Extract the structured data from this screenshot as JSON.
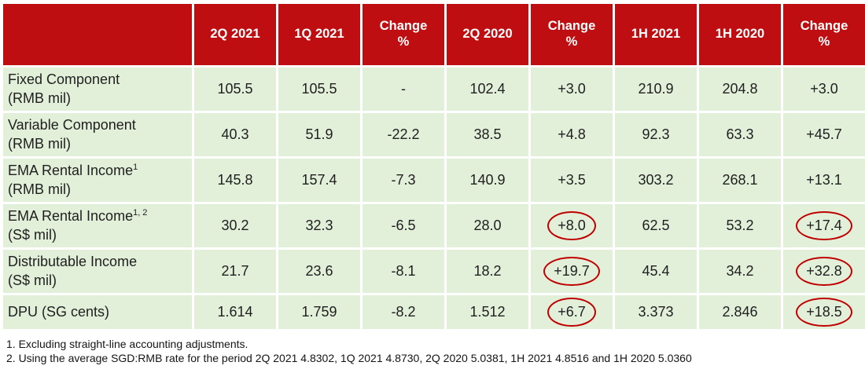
{
  "colors": {
    "header_bg": "#BE0E11",
    "row_bg": "#E2EFD9",
    "circle": "#C00000",
    "header_text": "#FFFFFF",
    "body_text": "#1F1F1F"
  },
  "table": {
    "headers": [
      "2Q 2021",
      "1Q 2021",
      "Change\n%",
      "2Q 2020",
      "Change\n%",
      "1H 2021",
      "1H 2020",
      "Change\n%"
    ],
    "rows": [
      {
        "name": "Fixed Component",
        "sup": "",
        "unit": "(RMB mil)",
        "values": [
          "105.5",
          "105.5",
          "-",
          "102.4",
          "+3.0",
          "210.9",
          "204.8",
          "+3.0"
        ],
        "circled": []
      },
      {
        "name": "Variable Component",
        "sup": "",
        "unit": "(RMB mil)",
        "values": [
          "40.3",
          "51.9",
          "-22.2",
          "38.5",
          "+4.8",
          "92.3",
          "63.3",
          "+45.7"
        ],
        "circled": []
      },
      {
        "name": "EMA Rental Income",
        "sup": "1",
        "unit": "(RMB mil)",
        "values": [
          "145.8",
          "157.4",
          "-7.3",
          "140.9",
          "+3.5",
          "303.2",
          "268.1",
          "+13.1"
        ],
        "circled": []
      },
      {
        "name": "EMA Rental Income",
        "sup": "1, 2",
        "unit": "(S$ mil)",
        "values": [
          "30.2",
          "32.3",
          "-6.5",
          "28.0",
          "+8.0",
          "62.5",
          "53.2",
          "+17.4"
        ],
        "circled": [
          4,
          7
        ]
      },
      {
        "name": "Distributable Income",
        "sup": "",
        "unit": "(S$ mil)",
        "values": [
          "21.7",
          "23.6",
          "-8.1",
          "18.2",
          "+19.7",
          "45.4",
          "34.2",
          "+32.8"
        ],
        "circled": [
          4,
          7
        ]
      },
      {
        "name": "DPU (SG cents)",
        "sup": "",
        "unit": "",
        "values": [
          "1.614",
          "1.759",
          "-8.2",
          "1.512",
          "+6.7",
          "3.373",
          "2.846",
          "+18.5"
        ],
        "circled": [
          4,
          7
        ]
      }
    ]
  },
  "footnotes": [
    "1. Excluding straight-line accounting adjustments.",
    "2. Using the average SGD:RMB rate for the period 2Q 2021 4.8302, 1Q 2021 4.8730, 2Q 2020 5.0381, 1H 2021 4.8516 and 1H 2020 5.0360"
  ]
}
